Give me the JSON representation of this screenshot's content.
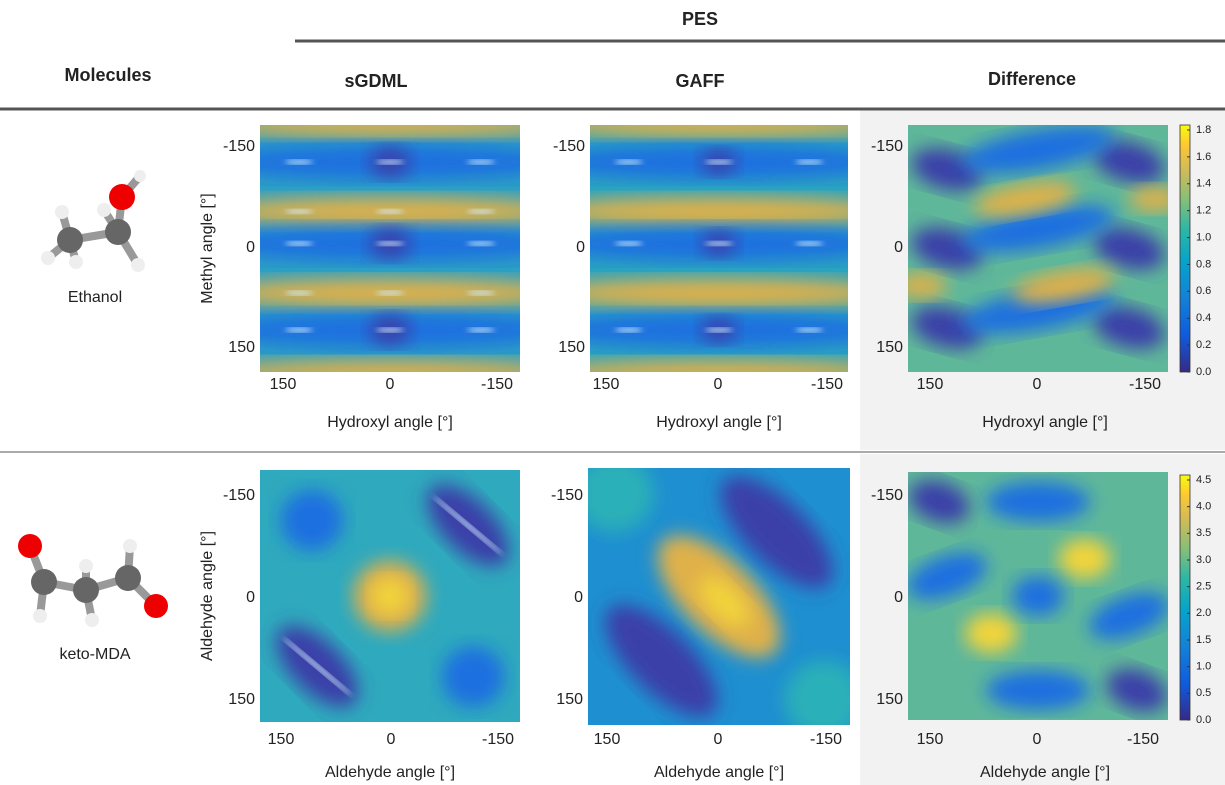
{
  "header": {
    "group_title": "PES",
    "molecules_title": "Molecules",
    "columns": [
      "sGDML",
      "GAFF",
      "Difference"
    ]
  },
  "rows": [
    {
      "molecule": "Ethanol",
      "y_axis_label": "Methyl angle [°]",
      "x_axis_label": "Hydroxyl angle [°]",
      "y_ticks": [
        "-150",
        "0",
        "150"
      ],
      "x_ticks": [
        "150",
        "0",
        "-150"
      ],
      "colorbar_ticks": [
        "1.8",
        "1.6",
        "1.4",
        "1.2",
        "1.0",
        "0.8",
        "0.6",
        "0.4",
        "0.2",
        "0.0"
      ]
    },
    {
      "molecule": "keto-MDA",
      "y_axis_label": "Aldehyde angle [°]",
      "x_axis_label": "Aldehyde angle [°]",
      "y_ticks": [
        "-150",
        "0",
        "150"
      ],
      "x_ticks": [
        "150",
        "0",
        "-150"
      ],
      "colorbar_ticks": [
        "4.5",
        "4.0",
        "3.5",
        "3.0",
        "2.5",
        "2.0",
        "1.5",
        "1.0",
        "0.5",
        "0.0"
      ]
    }
  ]
}
